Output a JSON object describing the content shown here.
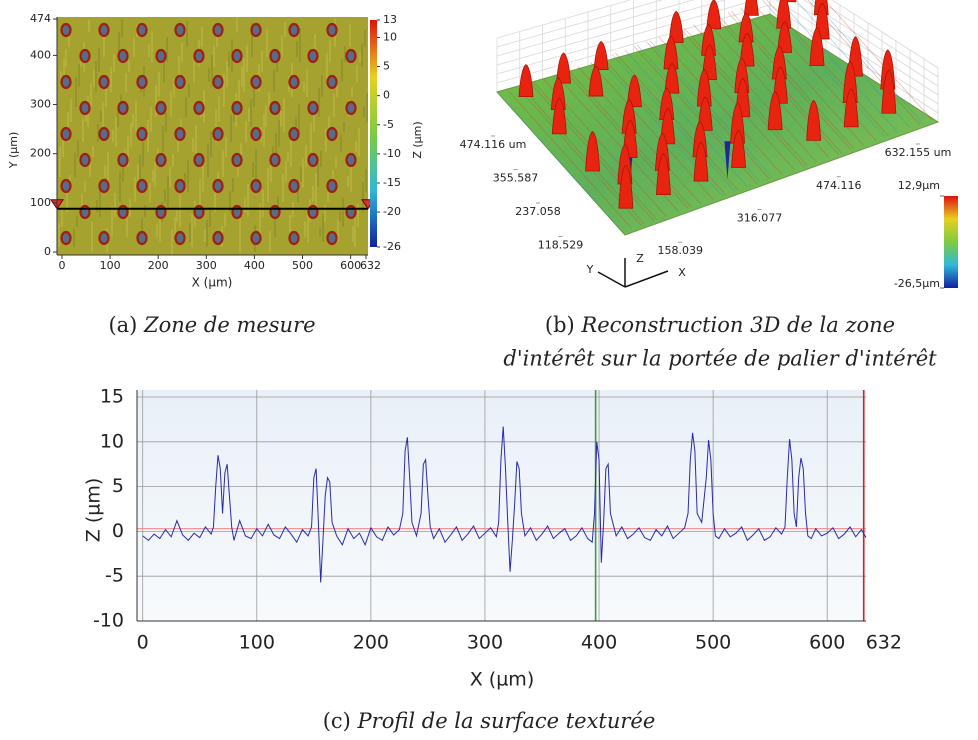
{
  "chart_data": [
    {
      "type": "heatmap",
      "caption": {
        "label": "(a)",
        "text": "Zone de mesure"
      },
      "xlabel": "X (µm)",
      "ylabel": "Y (µm)",
      "xlim": [
        0,
        632
      ],
      "xticks": [
        0,
        100,
        200,
        300,
        400,
        500,
        600,
        632
      ],
      "ylim": [
        0,
        474
      ],
      "yticks": [
        0,
        100,
        200,
        300,
        400,
        474
      ],
      "colorbar": {
        "label": "Z (µm)",
        "lim": [
          -26,
          13
        ],
        "ticks": [
          13,
          10,
          5,
          0,
          -5,
          -10,
          -15,
          -20,
          -26
        ]
      },
      "profile_y": 88
    },
    {
      "type": "surface3d",
      "caption": {
        "label": "(b)",
        "text": [
          "Reconstruction 3D de la zone",
          "d'intérêt sur la portée de palier d'intérêt"
        ]
      },
      "yticks": [
        {
          "value": 474.116,
          "label": "474.116 um"
        },
        355.587,
        237.058,
        118.529
      ],
      "xticks": [
        {
          "value": 632.155,
          "label": "632.155 um"
        },
        474.116,
        316.077,
        158.039
      ],
      "colorbar_ticks": [
        {
          "value": 12.9,
          "label": "12,9µm"
        },
        {
          "value": -26.5,
          "label": "-26,5µm"
        }
      ],
      "axes": [
        "Y",
        "Z",
        "X"
      ]
    },
    {
      "type": "line",
      "caption": {
        "label": "(c)",
        "text": "Profil de la surface texturée"
      },
      "xlabel": "X (µm)",
      "ylabel": "Z (µm)",
      "color": "#2a2aa8",
      "grid": true,
      "xlim": [
        -5,
        634
      ],
      "xticks": [
        0,
        100,
        200,
        300,
        400,
        500,
        600,
        632
      ],
      "ylim": [
        -10,
        15
      ],
      "yticks": [
        -10,
        -5,
        0,
        5,
        10,
        15
      ],
      "hlines": [
        {
          "y": 0.3,
          "color": "#f08a8a"
        }
      ],
      "vlines": [
        {
          "x": 397,
          "color": "#3c9a3c"
        },
        {
          "x": 632,
          "color": "#d62020"
        }
      ],
      "x": [
        0,
        5,
        10,
        15,
        20,
        25,
        30,
        35,
        40,
        45,
        50,
        55,
        60,
        62,
        64,
        66,
        68,
        70,
        72,
        74,
        76,
        78,
        80,
        85,
        90,
        95,
        100,
        105,
        110,
        115,
        120,
        125,
        130,
        135,
        140,
        145,
        148,
        150,
        152,
        154,
        156,
        158,
        160,
        162,
        164,
        166,
        170,
        175,
        180,
        185,
        190,
        195,
        200,
        205,
        210,
        215,
        220,
        225,
        228,
        230,
        232,
        234,
        236,
        240,
        244,
        246,
        248,
        250,
        252,
        255,
        260,
        265,
        270,
        275,
        280,
        285,
        290,
        295,
        300,
        305,
        310,
        312,
        314,
        316,
        318,
        320,
        322,
        324,
        326,
        328,
        330,
        332,
        335,
        340,
        345,
        350,
        355,
        360,
        365,
        370,
        375,
        380,
        385,
        390,
        394,
        396,
        398,
        400,
        402,
        404,
        406,
        408,
        410,
        415,
        420,
        425,
        430,
        435,
        440,
        445,
        450,
        455,
        460,
        465,
        470,
        475,
        478,
        480,
        482,
        484,
        486,
        490,
        494,
        496,
        498,
        500,
        502,
        505,
        510,
        515,
        520,
        525,
        530,
        535,
        540,
        545,
        550,
        555,
        560,
        563,
        565,
        567,
        569,
        571,
        573,
        575,
        577,
        579,
        581,
        583,
        586,
        590,
        595,
        600,
        605,
        610,
        615,
        620,
        625,
        630,
        634
      ],
      "values": [
        -0.5,
        -1,
        -0.3,
        -0.8,
        0.2,
        -0.6,
        1.2,
        -0.4,
        -1,
        -0.2,
        -0.7,
        0.5,
        -0.3,
        0.5,
        5,
        8.5,
        7,
        2,
        6.5,
        7.5,
        4,
        0.5,
        -1,
        1.2,
        -0.5,
        -0.8,
        0.3,
        -0.5,
        0.8,
        -0.4,
        -0.8,
        0.5,
        -0.3,
        -1.2,
        0.2,
        -0.5,
        0.5,
        6,
        7,
        1,
        -5.7,
        -1,
        4,
        6,
        5.5,
        1,
        -0.5,
        -1.5,
        0.3,
        -0.8,
        -0.2,
        -1.5,
        0.4,
        -0.6,
        -1,
        0.5,
        -0.4,
        0.2,
        2,
        9,
        10.5,
        6,
        1,
        -0.5,
        2,
        7.5,
        8,
        4,
        0.5,
        -0.8,
        0.3,
        -1.2,
        -0.4,
        0.5,
        -1,
        -0.3,
        0.6,
        -0.8,
        -0.2,
        0.4,
        -0.6,
        1,
        8,
        11.7,
        7,
        1,
        -4.5,
        -1,
        3,
        7.8,
        7,
        2,
        -0.5,
        0.4,
        -1,
        -0.3,
        0.6,
        -0.8,
        -0.2,
        0.3,
        -1,
        -0.5,
        0.4,
        -0.8,
        -1.2,
        2,
        10,
        8,
        -3.5,
        1,
        7,
        7.5,
        2,
        -0.5,
        0.5,
        -0.8,
        -0.3,
        0.4,
        -0.7,
        -1,
        0.2,
        -0.5,
        0.6,
        -0.8,
        -0.2,
        0.4,
        2,
        8,
        11,
        9,
        2,
        1,
        6,
        10.2,
        8,
        2,
        -0.5,
        -0.8,
        0.3,
        -0.6,
        -0.2,
        0.5,
        -1,
        -0.4,
        0.3,
        -1,
        -0.6,
        0.4,
        -0.3,
        0.5,
        6,
        10.3,
        8,
        2,
        0.5,
        6,
        8.2,
        7,
        2,
        -0.5,
        -0.8,
        0.3,
        -0.5,
        -0.2,
        0.4,
        -0.8,
        -0.3,
        0.5,
        -0.6,
        0.2,
        -0.7
      ]
    }
  ]
}
